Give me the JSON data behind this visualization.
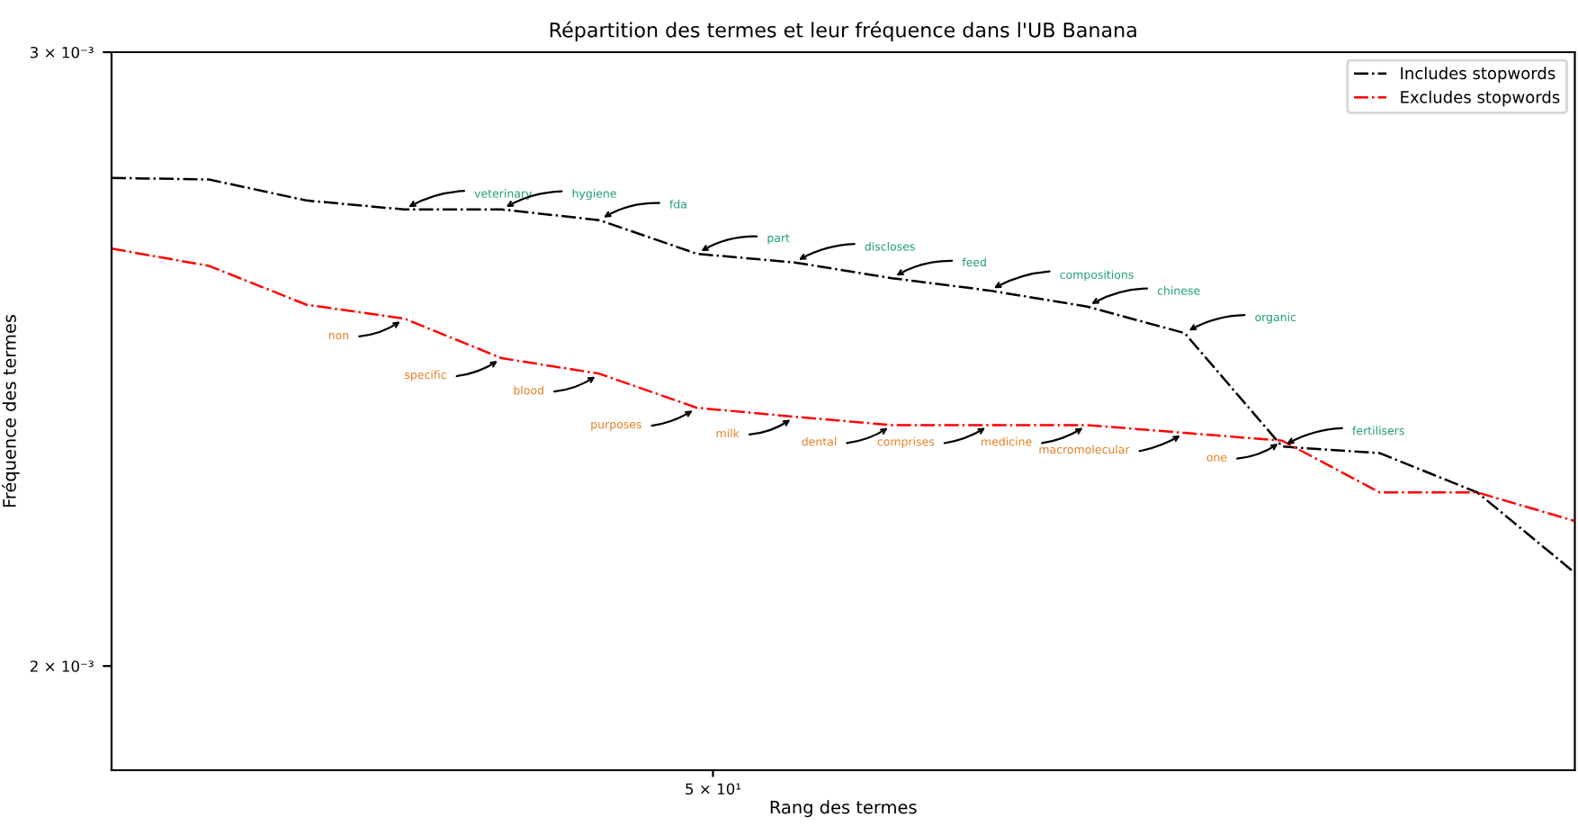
{
  "chart_data": {
    "type": "line",
    "title": "Répartition des termes et leur fréquence dans l'UB Banana",
    "xlabel": "Rang des termes",
    "ylabel": "Fréquence des termes",
    "categories": [
      null,
      null,
      null,
      null,
      null,
      null,
      null,
      null,
      null,
      null,
      null,
      null,
      null,
      null,
      null,
      null
    ],
    "log": "y",
    "ylim": [
      0.001867,
      0.003
    ],
    "yticks": [
      {
        "value": 0.003,
        "label": "3 × 10⁻³"
      },
      {
        "value": 0.002,
        "label": "2 × 10⁻³"
      }
    ],
    "grid": false,
    "legend": "top right",
    "line_style": "dashdot",
    "marker": "none",
    "series": [
      {
        "name": "Includes stopwords",
        "color": "#000000",
        "values": [
          0.002761,
          0.002758,
          0.00272,
          0.002704,
          0.002704,
          0.002685,
          0.002626,
          0.002611,
          0.002584,
          0.002563,
          0.002536,
          0.002492,
          0.002312,
          0.002302,
          0.002243,
          0.002127
        ]
      },
      {
        "name": "Excludes stopwords",
        "color": "#ff0000",
        "values": [
          0.002635,
          0.002605,
          0.002539,
          0.002516,
          0.002451,
          0.002426,
          0.002372,
          0.002358,
          0.002345,
          0.002345,
          0.002345,
          0.002333,
          0.002321,
          0.002243,
          0.002243,
          0.002201
        ]
      }
    ],
    "annotations": [
      "veterinary",
      "hygiene",
      "fda",
      "part",
      "discloses",
      "feed",
      "compositions",
      "chinese",
      "organic",
      "fertilisers",
      "non",
      "specific",
      "blood",
      "purposes",
      "milk",
      "dental",
      "comprises",
      "medicine",
      "macromolecular",
      "one",
      "5 × 10¹"
    ]
  }
}
